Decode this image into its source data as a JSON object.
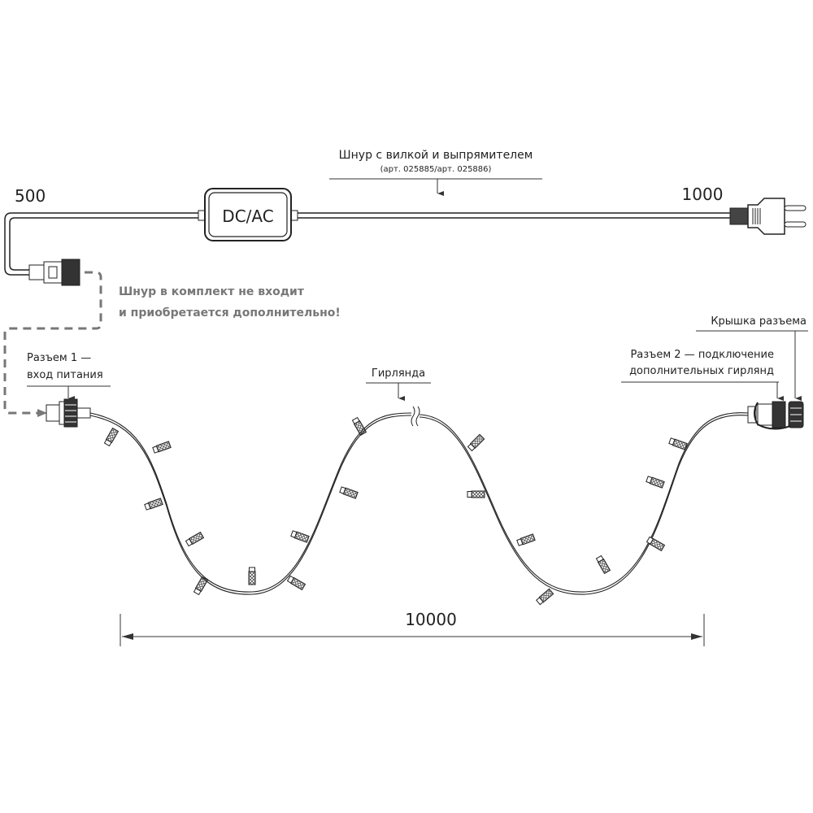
{
  "cord": {
    "title": "Шнур с вилкой и выпрямителем",
    "article": "(арт. 025885/арт. 025886)",
    "length_left": "500",
    "length_right": "1000",
    "box_label": "DC/AC"
  },
  "note": {
    "line1": "Шнур в комплект не входит",
    "line2": "и приобретается дополнительно!",
    "color": "#777777"
  },
  "connector1": {
    "line1": "Разъем 1 —",
    "line2": "вход питания"
  },
  "garland": {
    "label": "Гирлянда"
  },
  "cap": {
    "label": "Крышка разъема"
  },
  "connector2": {
    "line1": "Разъем 2 — подключение",
    "line2": "дополнительных гирлянд"
  },
  "dimension": {
    "label": "10000"
  }
}
